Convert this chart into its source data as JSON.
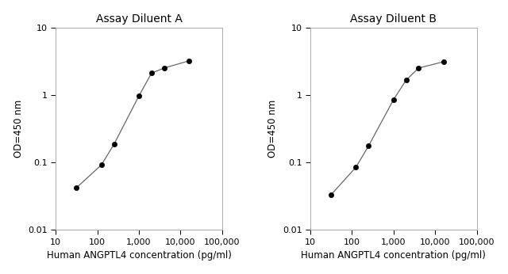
{
  "title_A": "Assay Diluent A",
  "title_B": "Assay Diluent B",
  "xlabel": "Human ANGPTL4 concentration (pg/ml)",
  "ylabel": "OD=450 nm",
  "x_A": [
    31.25,
    125,
    250,
    1000,
    2000,
    4000,
    16000
  ],
  "y_A": [
    0.042,
    0.092,
    0.185,
    0.97,
    2.1,
    2.5,
    3.2
  ],
  "x_B": [
    31.25,
    125,
    250,
    1000,
    2000,
    4000,
    16000
  ],
  "y_B": [
    0.033,
    0.085,
    0.175,
    0.85,
    1.65,
    2.5,
    3.1
  ],
  "xlim": [
    10,
    100000
  ],
  "ylim": [
    0.01,
    10
  ],
  "line_color": "#666666",
  "marker_color": "#000000",
  "bg_color": "#ffffff",
  "plot_bg_color": "#ffffff",
  "title_fontsize": 10,
  "label_fontsize": 8.5,
  "tick_fontsize": 8,
  "xticks": [
    10,
    100,
    1000,
    10000,
    100000
  ],
  "xtick_labels": [
    "10",
    "100",
    "1,000",
    "10,000",
    "100,000"
  ],
  "yticks": [
    0.01,
    0.1,
    1,
    10
  ],
  "ytick_labels": [
    "0.01",
    "0.1",
    "1",
    "10"
  ]
}
